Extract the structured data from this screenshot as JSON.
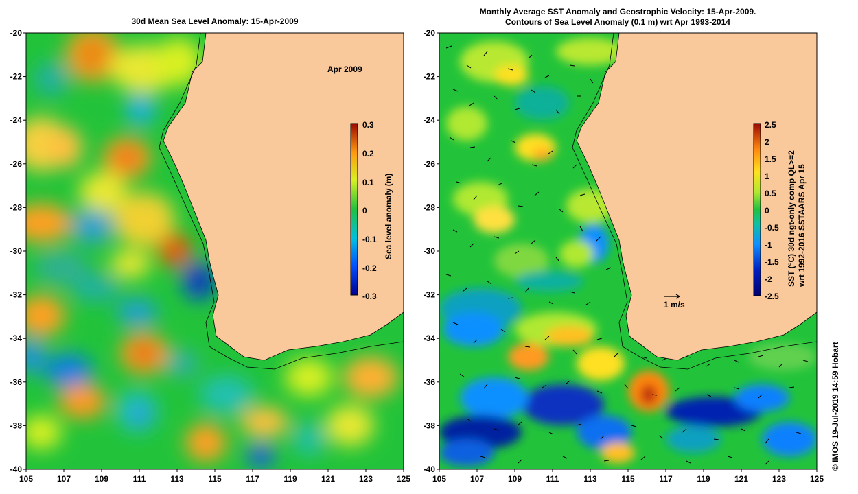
{
  "left_panel": {
    "title": "30d Mean Sea Level Anomaly: 15-Apr-2009",
    "month_label": "Apr 2009",
    "colorbar": {
      "label": "Sea level anomaly (m)",
      "ticks": [
        "0.3",
        "0.2",
        "0.1",
        "0",
        "-0.1",
        "-0.2",
        "-0.3"
      ]
    }
  },
  "right_panel": {
    "title_line1": "Monthly Average SST Anomaly  and Geostrophic Velocity: 15-Apr-2009.",
    "title_line2": "Contours of Sea Level Anomaly (0.1 m) wrt Apr 1993-2014",
    "velocity_scale_label": "1 m/s",
    "colorbar": {
      "label_line1": "SST (°C) 30d ngt-only comp QL>=2",
      "label_line2": "wrt 1992-2016 SSTAARS Apr 15",
      "ticks": [
        "2.5",
        "2",
        "1.5",
        "1",
        "0.5",
        "0",
        "-0.5",
        "-1",
        "-1.5",
        "-2",
        "-2.5"
      ]
    }
  },
  "axes": {
    "lat_ticks": [
      "-20",
      "-22",
      "-24",
      "-26",
      "-28",
      "-30",
      "-32",
      "-34",
      "-36",
      "-38",
      "-40"
    ],
    "lon_ticks": [
      "105",
      "107",
      "109",
      "111",
      "113",
      "115",
      "117",
      "119",
      "121",
      "123",
      "125"
    ]
  },
  "credit": "© IMOS 19-Jul-2019 14:59 Hobart",
  "colors": {
    "land": "#f9c89b",
    "ocean_base": "#22c33a",
    "coastline": "#000000"
  }
}
